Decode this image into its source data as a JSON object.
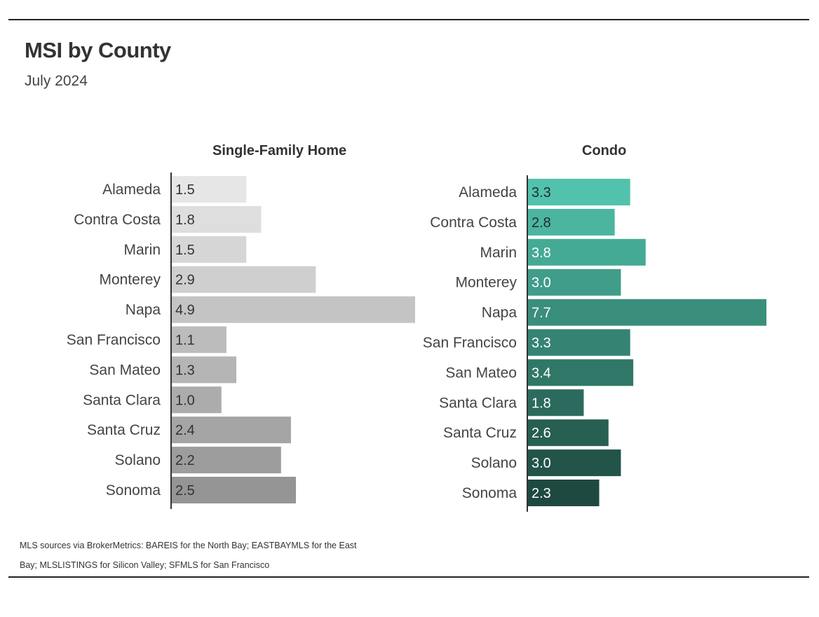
{
  "title": "MSI by County",
  "subtitle": "July 2024",
  "footnote": "MLS sources via BrokerMetrics: BAREIS for the North Bay; EASTBAYMLS for the East Bay; MLSLISTINGS for Silicon Valley; SFMLS for San Francisco",
  "chart_data": [
    {
      "type": "bar",
      "orientation": "horizontal",
      "title": "Single-Family Home",
      "categories": [
        "Alameda",
        "Contra Costa",
        "Marin",
        "Monterey",
        "Napa",
        "San Francisco",
        "San Mateo",
        "Santa Clara",
        "Santa Cruz",
        "Solano",
        "Sonoma"
      ],
      "values": [
        1.5,
        1.8,
        1.5,
        2.9,
        4.9,
        1.1,
        1.3,
        1.0,
        2.4,
        2.2,
        2.5
      ],
      "value_labels": [
        "1.5",
        "1.8",
        "1.5",
        "2.9",
        "4.9",
        "1.1",
        "1.3",
        "1.0",
        "2.4",
        "2.2",
        "2.5"
      ],
      "xlim": [
        0,
        4.9
      ],
      "colors": [
        "#e6e6e6",
        "#dedede",
        "#d6d6d6",
        "#cfcfcf",
        "#c4c4c4",
        "#bcbcbc",
        "#b5b5b5",
        "#acacac",
        "#a5a5a5",
        "#9d9d9d",
        "#959595"
      ],
      "label_color": "#333333"
    },
    {
      "type": "bar",
      "orientation": "horizontal",
      "title": "Condo",
      "categories": [
        "Alameda",
        "Contra Costa",
        "Marin",
        "Monterey",
        "Napa",
        "San Francisco",
        "San Mateo",
        "Santa Clara",
        "Santa Cruz",
        "Solano",
        "Sonoma"
      ],
      "values": [
        3.3,
        2.8,
        3.8,
        3.0,
        7.7,
        3.3,
        3.4,
        1.8,
        2.6,
        3.0,
        2.3
      ],
      "value_labels": [
        "3.3",
        "2.8",
        "3.8",
        "3.0",
        "7.7",
        "3.3",
        "3.4",
        "1.8",
        "2.6",
        "3.0",
        "2.3"
      ],
      "xlim": [
        0,
        7.7
      ],
      "colors": [
        "#52c2ac",
        "#4bb5a0",
        "#45aa95",
        "#409d89",
        "#3a8e7c",
        "#358372",
        "#307767",
        "#2b6b5d",
        "#275f53",
        "#22544a",
        "#1e4940"
      ],
      "label_color": "#ffffff",
      "dark_label_color": "#1e2e2a"
    }
  ]
}
